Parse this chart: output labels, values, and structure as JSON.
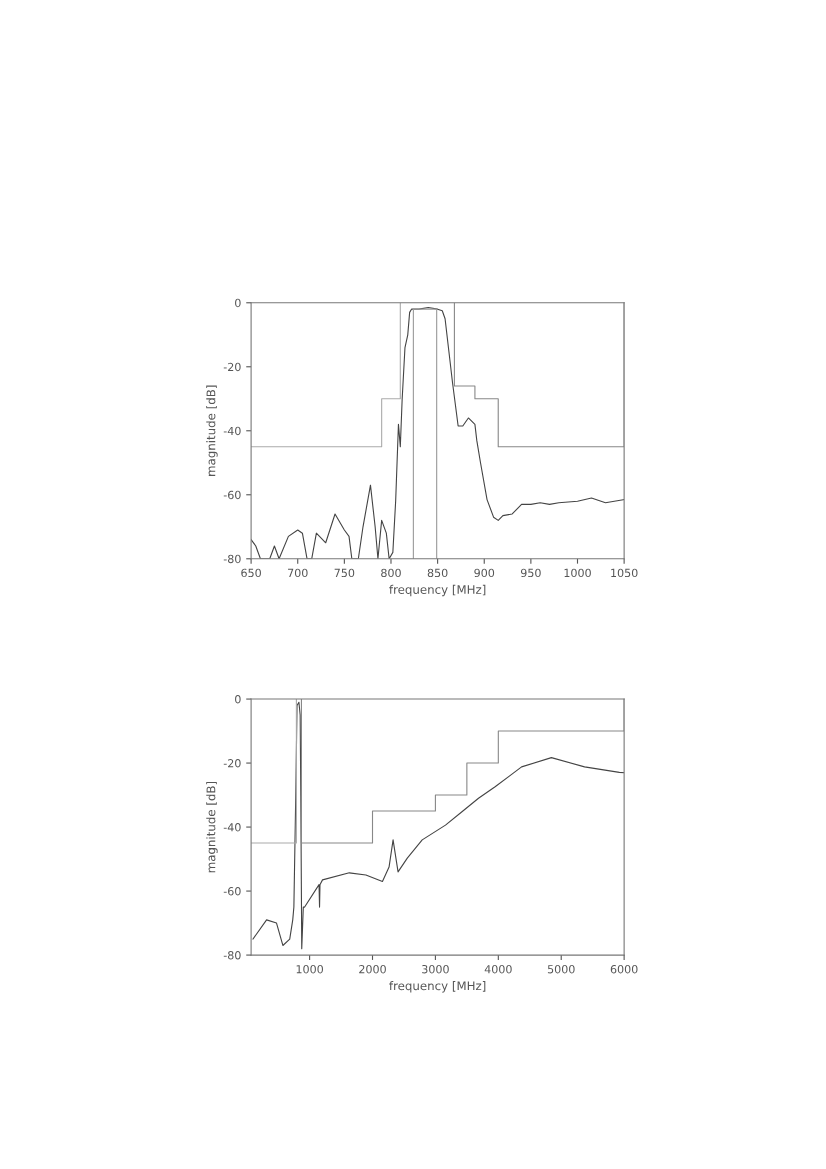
{
  "chart_data": [
    {
      "type": "line",
      "xlabel": "frequency [MHz]",
      "ylabel": "magnitude [dB]",
      "xlim": [
        650,
        1050
      ],
      "ylim": [
        -80,
        0
      ],
      "xticks": [
        650,
        700,
        750,
        800,
        850,
        900,
        950,
        1000,
        1050
      ],
      "yticks": [
        -80,
        -60,
        -40,
        -20,
        0
      ],
      "grid": false,
      "legend": false,
      "series": [
        {
          "color": "#444444",
          "x": [
            650,
            655,
            660,
            670,
            675,
            680,
            690,
            700,
            705,
            710,
            715,
            720,
            730,
            740,
            750,
            755,
            758,
            765,
            770,
            778,
            783,
            786,
            790,
            795,
            798,
            802,
            805,
            808,
            810,
            812,
            815,
            818,
            820,
            822,
            830,
            840,
            850,
            855,
            858,
            862,
            866,
            872,
            877,
            883,
            890,
            892,
            896,
            903,
            910,
            915,
            920,
            930,
            940,
            950,
            960,
            970,
            980,
            1000,
            1015,
            1030,
            1050
          ],
          "values": [
            -74,
            -76,
            -80,
            -80,
            -76,
            -80,
            -73,
            -71,
            -72,
            -80,
            -80,
            -72,
            -75,
            -66,
            -71,
            -73,
            -80,
            -80,
            -70,
            -57,
            -70,
            -80,
            -68,
            -72,
            -80,
            -78,
            -62,
            -38,
            -45,
            -30,
            -14,
            -10,
            -3,
            -2,
            -2,
            -1.5,
            -2,
            -2.5,
            -5,
            -15,
            -25,
            -38.5,
            -38.5,
            -36,
            -38,
            -43,
            -50,
            -61.5,
            -67,
            -68,
            -66.5,
            -66,
            -63,
            -63,
            -62.5,
            -63,
            -62.5,
            -62,
            -61,
            -62.5,
            -61.5
          ]
        },
        {
          "color": "#aaaaaa",
          "x": [
            650,
            790,
            790,
            810,
            810
          ],
          "values": [
            -45,
            -45,
            -30,
            -30,
            0
          ]
        },
        {
          "color": "#888888",
          "x": [
            868,
            868,
            890,
            890,
            915,
            915,
            1050,
            1050
          ],
          "values": [
            0,
            -26,
            -26,
            -30,
            -30,
            -45,
            -45,
            0
          ]
        },
        {
          "color": "#999999",
          "x": [
            824,
            824,
            849,
            849
          ],
          "values": [
            -80,
            -2,
            -2,
            -80
          ]
        }
      ]
    },
    {
      "type": "line",
      "xlabel": "frequency [MHz]",
      "ylabel": "magnitude [dB]",
      "xlim": [
        70,
        6000
      ],
      "ylim": [
        -80,
        0
      ],
      "xticks": [
        1000,
        2000,
        3000,
        4000,
        5000,
        6000
      ],
      "yticks": [
        -80,
        -60,
        -40,
        -20,
        0
      ],
      "grid": false,
      "legend": false,
      "series": [
        {
          "color": "#444444",
          "x": [
            100,
            316,
            474,
            575,
            684,
            732,
            750,
            780,
            800,
            830,
            850,
            860,
            875,
            900,
            921,
            1150,
            1158,
            1165,
            1205,
            1631,
            1895,
            2158,
            2263,
            2327,
            2406,
            2553,
            2790,
            3160,
            3422,
            3685,
            3949,
            4370,
            4844,
            5371,
            5924,
            6000
          ],
          "values": [
            -75,
            -69,
            -70,
            -77,
            -75,
            -69,
            -65,
            -30,
            -2,
            -1,
            -5,
            -30,
            -78,
            -65,
            -65,
            -58,
            -65,
            -58,
            -56.5,
            -54.3,
            -55,
            -57,
            -52.5,
            -44,
            -54,
            -49.7,
            -44,
            -39.4,
            -35.2,
            -31,
            -27.4,
            -21.2,
            -18.3,
            -21.2,
            -22.9,
            -23
          ]
        },
        {
          "color": "#aaaaaa",
          "x": [
            70,
            790,
            790
          ],
          "values": [
            -45,
            -45,
            0
          ]
        },
        {
          "color": "#888888",
          "x": [
            870,
            870,
            2000,
            2000,
            3000,
            3000,
            3500,
            3500,
            4000,
            4000,
            6000,
            6000
          ],
          "values": [
            0,
            -45,
            -45,
            -35,
            -35,
            -30,
            -30,
            -20,
            -20,
            -10,
            -10,
            0
          ]
        }
      ]
    }
  ]
}
